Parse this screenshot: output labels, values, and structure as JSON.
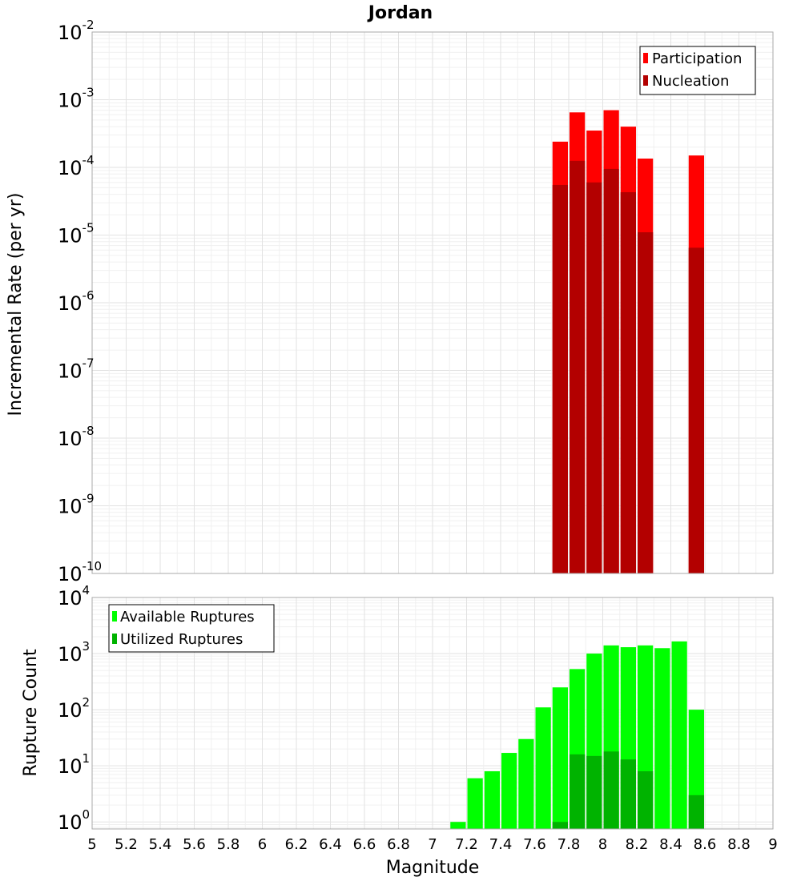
{
  "chart_data": [
    {
      "type": "bar",
      "title": "Jordan",
      "xlabel": "",
      "ylabel": "Incremental Rate (per yr)",
      "yscale": "log",
      "ylim": [
        1e-10,
        0.01
      ],
      "xlim": [
        5,
        9
      ],
      "bin_width": 0.1,
      "grid": true,
      "legend_position": "top-right",
      "ytick_labels": [
        {
          "base": "10",
          "exp": "-10"
        },
        {
          "base": "10",
          "exp": "-9"
        },
        {
          "base": "10",
          "exp": "-8"
        },
        {
          "base": "10",
          "exp": "-7"
        },
        {
          "base": "10",
          "exp": "-6"
        },
        {
          "base": "10",
          "exp": "-5"
        },
        {
          "base": "10",
          "exp": "-4"
        },
        {
          "base": "10",
          "exp": "-3"
        },
        {
          "base": "10",
          "exp": "-2"
        }
      ],
      "series": [
        {
          "name": "Participation",
          "color": "#ff0000",
          "x": [
            7.75,
            7.85,
            7.95,
            8.05,
            8.15,
            8.25,
            8.55
          ],
          "values": [
            0.00024,
            0.00065,
            0.00035,
            0.0007,
            0.0004,
            0.000135,
            0.00015
          ]
        },
        {
          "name": "Nucleation",
          "color": "#b30000",
          "x": [
            7.75,
            7.85,
            7.95,
            8.05,
            8.15,
            8.25,
            8.55
          ],
          "values": [
            5.5e-05,
            0.000125,
            6e-05,
            9.5e-05,
            4.3e-05,
            1.1e-05,
            6.5e-06
          ]
        }
      ]
    },
    {
      "type": "bar",
      "title": "",
      "xlabel": "Magnitude",
      "ylabel": "Rupture Count",
      "yscale": "log",
      "ylim": [
        0.75,
        10000
      ],
      "xlim": [
        5,
        9
      ],
      "bin_width": 0.1,
      "grid": true,
      "legend_position": "top-left",
      "xtick_labels": [
        "5",
        "5.2",
        "5.4",
        "5.6",
        "5.8",
        "6",
        "6.2",
        "6.4",
        "6.6",
        "6.8",
        "7",
        "7.2",
        "7.4",
        "7.6",
        "7.8",
        "8",
        "8.2",
        "8.4",
        "8.6",
        "8.8",
        "9"
      ],
      "ytick_labels": [
        {
          "base": "10",
          "exp": "0"
        },
        {
          "base": "10",
          "exp": "1"
        },
        {
          "base": "10",
          "exp": "2"
        },
        {
          "base": "10",
          "exp": "3"
        },
        {
          "base": "10",
          "exp": "4"
        }
      ],
      "series": [
        {
          "name": "Available Ruptures",
          "color": "#00ff00",
          "x": [
            7.15,
            7.25,
            7.35,
            7.45,
            7.55,
            7.65,
            7.75,
            7.85,
            7.95,
            8.05,
            8.15,
            8.25,
            8.35,
            8.45,
            8.55
          ],
          "values": [
            1,
            6,
            8,
            17,
            30,
            110,
            250,
            530,
            1000,
            1400,
            1300,
            1400,
            1250,
            1650,
            100
          ]
        },
        {
          "name": "Utilized Ruptures",
          "color": "#00b300",
          "x": [
            7.75,
            7.85,
            7.95,
            8.05,
            8.15,
            8.25,
            8.55
          ],
          "values": [
            1,
            16,
            15,
            18,
            13,
            8,
            3
          ]
        }
      ]
    }
  ]
}
